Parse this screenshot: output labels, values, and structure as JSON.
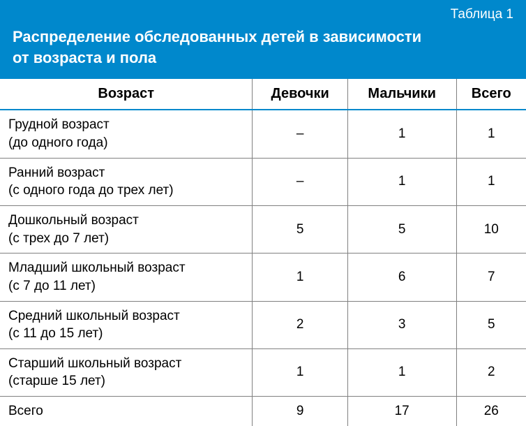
{
  "header": {
    "table_label": "Таблица 1",
    "title_line1": "Распределение обследованных детей в зависимости",
    "title_line2": "от возраста и пола"
  },
  "columns": {
    "age": "Возраст",
    "girls": "Девочки",
    "boys": "Мальчики",
    "total": "Всего"
  },
  "rows": [
    {
      "label_main": "Грудной возраст",
      "label_sub": "(до одного года)",
      "girls": "–",
      "boys": "1",
      "total": "1"
    },
    {
      "label_main": "Ранний возраст",
      "label_sub": "(с одного года до трех лет)",
      "girls": "–",
      "boys": "1",
      "total": "1"
    },
    {
      "label_main": "Дошкольный возраст",
      "label_sub": "(с трех до 7 лет)",
      "girls": "5",
      "boys": "5",
      "total": "10"
    },
    {
      "label_main": "Младший школьный возраст",
      "label_sub": "(с 7 до 11 лет)",
      "girls": "1",
      "boys": "6",
      "total": "7"
    },
    {
      "label_main": "Средний школьный возраст",
      "label_sub": "(с 11 до 15 лет)",
      "girls": "2",
      "boys": "3",
      "total": "5"
    },
    {
      "label_main": "Старший школьный возраст",
      "label_sub": "(старше 15 лет)",
      "girls": "1",
      "boys": "1",
      "total": "2"
    },
    {
      "label_main": "Всего",
      "label_sub": "",
      "girls": "9",
      "boys": "17",
      "total": "26"
    }
  ],
  "style": {
    "header_bg": "#0088cc",
    "header_text": "#ffffff",
    "accent_border": "#0088cc",
    "row_border": "#808080",
    "body_text": "#000000",
    "title_fontsize": 22,
    "label_fontsize": 19,
    "th_fontsize": 20,
    "td_fontsize": 19
  }
}
